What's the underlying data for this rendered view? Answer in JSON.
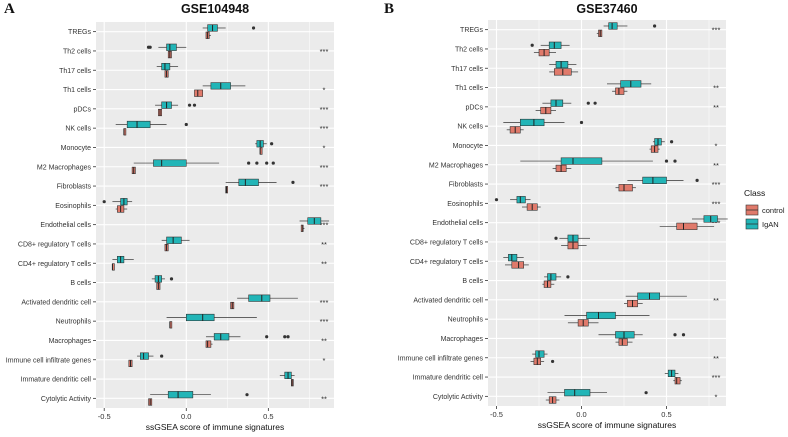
{
  "chart_data": [
    {
      "panel": "A",
      "type": "boxplot",
      "title": "GSE104948",
      "xlabel": "ssGSEA score of immune signatures",
      "xlim": [
        -0.55,
        0.9
      ],
      "xticks": [
        -0.5,
        0.0,
        0.5
      ],
      "xtick_labels": [
        "-0.5",
        "0.0",
        "0.5"
      ],
      "groups": [
        "control",
        "IgAN"
      ],
      "categories": [
        {
          "label": "TREGs",
          "sig": "",
          "control": {
            "q1": 0.12,
            "med": 0.13,
            "q3": 0.14,
            "min": 0.12,
            "max": 0.15
          },
          "IgAN": {
            "q1": 0.13,
            "med": 0.16,
            "q3": 0.19,
            "min": 0.1,
            "max": 0.24,
            "out": [
              0.41
            ]
          }
        },
        {
          "label": "Th2 cells",
          "sig": "***",
          "control": {
            "q1": -0.11,
            "med": -0.1,
            "q3": -0.09,
            "min": -0.11,
            "max": -0.09
          },
          "IgAN": {
            "q1": -0.12,
            "med": -0.1,
            "q3": -0.06,
            "min": -0.17,
            "max": 0.0,
            "out": [
              -0.22,
              -0.23
            ]
          }
        },
        {
          "label": "Th17 cells",
          "sig": "",
          "control": {
            "q1": -0.13,
            "med": -0.12,
            "q3": -0.11,
            "min": -0.13,
            "max": -0.11
          },
          "IgAN": {
            "q1": -0.15,
            "med": -0.13,
            "q3": -0.1,
            "min": -0.18,
            "max": -0.05
          }
        },
        {
          "label": "Th1 cells",
          "sig": "*",
          "control": {
            "q1": 0.05,
            "med": 0.07,
            "q3": 0.1,
            "min": 0.05,
            "max": 0.1
          },
          "IgAN": {
            "q1": 0.15,
            "med": 0.21,
            "q3": 0.27,
            "min": 0.1,
            "max": 0.36
          }
        },
        {
          "label": "pDCs",
          "sig": "***",
          "control": {
            "q1": -0.17,
            "med": -0.16,
            "q3": -0.15,
            "min": -0.17,
            "max": -0.15
          },
          "IgAN": {
            "q1": -0.15,
            "med": -0.12,
            "q3": -0.09,
            "min": -0.19,
            "max": -0.05,
            "out": [
              0.02,
              0.05
            ]
          }
        },
        {
          "label": "NK cells",
          "sig": "***",
          "control": {
            "q1": -0.38,
            "med": -0.38,
            "q3": -0.37,
            "min": -0.38,
            "max": -0.37
          },
          "IgAN": {
            "q1": -0.36,
            "med": -0.3,
            "q3": -0.22,
            "min": -0.43,
            "max": -0.12,
            "out": [
              0.0
            ]
          }
        },
        {
          "label": "Monocyte",
          "sig": "*",
          "control": {
            "q1": 0.45,
            "med": 0.45,
            "q3": 0.46,
            "min": 0.45,
            "max": 0.46
          },
          "IgAN": {
            "q1": 0.43,
            "med": 0.45,
            "q3": 0.47,
            "min": 0.42,
            "max": 0.49,
            "out": [
              0.52
            ]
          }
        },
        {
          "label": "M2 Macrophages",
          "sig": "***",
          "control": {
            "q1": -0.33,
            "med": -0.32,
            "q3": -0.31,
            "min": -0.33,
            "max": -0.31
          },
          "IgAN": {
            "q1": -0.2,
            "med": -0.15,
            "q3": 0.0,
            "min": -0.32,
            "max": 0.2,
            "out": [
              0.38,
              0.43,
              0.49,
              0.53
            ]
          }
        },
        {
          "label": "Fibroblasts",
          "sig": "***",
          "control": {
            "q1": 0.24,
            "med": 0.245,
            "q3": 0.25,
            "min": 0.24,
            "max": 0.25
          },
          "IgAN": {
            "q1": 0.32,
            "med": 0.36,
            "q3": 0.44,
            "min": 0.24,
            "max": 0.55,
            "out": [
              0.65
            ]
          }
        },
        {
          "label": "Eosinophils",
          "sig": "",
          "control": {
            "q1": -0.42,
            "med": -0.4,
            "q3": -0.38,
            "min": -0.43,
            "max": -0.36
          },
          "IgAN": {
            "q1": -0.4,
            "med": -0.38,
            "q3": -0.36,
            "min": -0.45,
            "max": -0.33,
            "out": [
              -0.5
            ]
          }
        },
        {
          "label": "Endothelial cells",
          "sig": "***",
          "control": {
            "q1": 0.7,
            "med": 0.71,
            "q3": 0.71,
            "min": 0.7,
            "max": 0.72
          },
          "IgAN": {
            "q1": 0.74,
            "med": 0.78,
            "q3": 0.82,
            "min": 0.69,
            "max": 0.87
          }
        },
        {
          "label": "CD8+ regulatory T cells",
          "sig": "**",
          "control": {
            "q1": -0.13,
            "med": -0.12,
            "q3": -0.11,
            "min": -0.13,
            "max": -0.11
          },
          "IgAN": {
            "q1": -0.12,
            "med": -0.08,
            "q3": -0.03,
            "min": -0.15,
            "max": 0.02
          }
        },
        {
          "label": "CD4+ regulatory T cells",
          "sig": "**",
          "control": {
            "q1": -0.45,
            "med": -0.45,
            "q3": -0.44,
            "min": -0.45,
            "max": -0.44
          },
          "IgAN": {
            "q1": -0.42,
            "med": -0.4,
            "q3": -0.38,
            "min": -0.45,
            "max": -0.32
          }
        },
        {
          "label": "B cells",
          "sig": "",
          "control": {
            "q1": -0.18,
            "med": -0.17,
            "q3": -0.16,
            "min": -0.18,
            "max": -0.16
          },
          "IgAN": {
            "q1": -0.19,
            "med": -0.17,
            "q3": -0.15,
            "min": -0.21,
            "max": -0.13,
            "out": [
              -0.09
            ]
          }
        },
        {
          "label": "Activated dendritic cell",
          "sig": "***",
          "control": {
            "q1": 0.27,
            "med": 0.28,
            "q3": 0.29,
            "min": 0.27,
            "max": 0.29
          },
          "IgAN": {
            "q1": 0.38,
            "med": 0.46,
            "q3": 0.51,
            "min": 0.31,
            "max": 0.68
          }
        },
        {
          "label": "Neutrophils",
          "sig": "***",
          "control": {
            "q1": -0.1,
            "med": -0.1,
            "q3": -0.09,
            "min": -0.1,
            "max": -0.09
          },
          "IgAN": {
            "q1": 0.0,
            "med": 0.1,
            "q3": 0.17,
            "min": -0.12,
            "max": 0.43
          }
        },
        {
          "label": "Macrophages",
          "sig": "**",
          "control": {
            "q1": 0.12,
            "med": 0.13,
            "q3": 0.15,
            "min": 0.12,
            "max": 0.16
          },
          "IgAN": {
            "q1": 0.17,
            "med": 0.21,
            "q3": 0.26,
            "min": 0.12,
            "max": 0.33,
            "out": [
              0.49,
              0.6,
              0.62
            ]
          }
        },
        {
          "label": "Immune cell infiltrate genes",
          "sig": "*",
          "control": {
            "q1": -0.35,
            "med": -0.34,
            "q3": -0.33,
            "min": -0.35,
            "max": -0.33
          },
          "IgAN": {
            "q1": -0.28,
            "med": -0.26,
            "q3": -0.23,
            "min": -0.3,
            "max": -0.2,
            "out": [
              -0.15
            ]
          }
        },
        {
          "label": "Immature dendritic cell",
          "sig": "",
          "control": {
            "q1": 0.64,
            "med": 0.645,
            "q3": 0.65,
            "min": 0.64,
            "max": 0.65
          },
          "IgAN": {
            "q1": 0.6,
            "med": 0.62,
            "q3": 0.64,
            "min": 0.57,
            "max": 0.66
          }
        },
        {
          "label": "Cytolytic Activity",
          "sig": "**",
          "control": {
            "q1": -0.23,
            "med": -0.22,
            "q3": -0.21,
            "min": -0.23,
            "max": -0.21
          },
          "IgAN": {
            "q1": -0.11,
            "med": -0.05,
            "q3": 0.04,
            "min": -0.22,
            "max": 0.15,
            "out": [
              0.37
            ]
          }
        }
      ]
    },
    {
      "panel": "B",
      "type": "boxplot",
      "title": "GSE37460",
      "xlabel": "ssGSEA score of immune signatures",
      "xlim": [
        -0.55,
        0.85
      ],
      "xticks": [
        -0.5,
        0.0,
        0.5
      ],
      "xtick_labels": [
        "-0.5",
        "0.0",
        "0.5"
      ],
      "groups": [
        "control",
        "IgAN"
      ],
      "categories": [
        {
          "label": "TREGs",
          "sig": "***",
          "control": {
            "q1": 0.1,
            "med": 0.11,
            "q3": 0.12,
            "min": 0.09,
            "max": 0.12
          },
          "IgAN": {
            "q1": 0.16,
            "med": 0.18,
            "q3": 0.21,
            "min": 0.13,
            "max": 0.27,
            "out": [
              0.43
            ]
          }
        },
        {
          "label": "Th2 cells",
          "sig": "",
          "control": {
            "q1": -0.25,
            "med": -0.22,
            "q3": -0.19,
            "min": -0.28,
            "max": -0.15
          },
          "IgAN": {
            "q1": -0.19,
            "med": -0.16,
            "q3": -0.12,
            "min": -0.24,
            "max": -0.07,
            "out": [
              -0.29
            ]
          }
        },
        {
          "label": "Th17 cells",
          "sig": "",
          "control": {
            "q1": -0.16,
            "med": -0.11,
            "q3": -0.06,
            "min": -0.19,
            "max": -0.02
          },
          "IgAN": {
            "q1": -0.15,
            "med": -0.12,
            "q3": -0.08,
            "min": -0.19,
            "max": -0.03
          }
        },
        {
          "label": "Th1 cells",
          "sig": "**",
          "control": {
            "q1": 0.2,
            "med": 0.22,
            "q3": 0.25,
            "min": 0.18,
            "max": 0.27
          },
          "IgAN": {
            "q1": 0.23,
            "med": 0.29,
            "q3": 0.35,
            "min": 0.15,
            "max": 0.41
          }
        },
        {
          "label": "pDCs",
          "sig": "**",
          "control": {
            "q1": -0.24,
            "med": -0.21,
            "q3": -0.18,
            "min": -0.27,
            "max": -0.15
          },
          "IgAN": {
            "q1": -0.18,
            "med": -0.15,
            "q3": -0.11,
            "min": -0.23,
            "max": -0.06,
            "out": [
              0.04,
              0.08
            ]
          }
        },
        {
          "label": "NK cells",
          "sig": "",
          "control": {
            "q1": -0.42,
            "med": -0.39,
            "q3": -0.36,
            "min": -0.44,
            "max": -0.34
          },
          "IgAN": {
            "q1": -0.36,
            "med": -0.28,
            "q3": -0.22,
            "min": -0.46,
            "max": -0.1,
            "out": [
              0.0
            ]
          }
        },
        {
          "label": "Monocyte",
          "sig": "*",
          "control": {
            "q1": 0.41,
            "med": 0.43,
            "q3": 0.45,
            "min": 0.4,
            "max": 0.46
          },
          "IgAN": {
            "q1": 0.43,
            "med": 0.45,
            "q3": 0.47,
            "min": 0.42,
            "max": 0.49,
            "out": [
              0.53
            ]
          }
        },
        {
          "label": "M2 Macrophages",
          "sig": "**",
          "control": {
            "q1": -0.15,
            "med": -0.12,
            "q3": -0.09,
            "min": -0.17,
            "max": -0.06
          },
          "IgAN": {
            "q1": -0.12,
            "med": -0.05,
            "q3": 0.12,
            "min": -0.36,
            "max": 0.42,
            "out": [
              0.5,
              0.55
            ]
          }
        },
        {
          "label": "Fibroblasts",
          "sig": "***",
          "control": {
            "q1": 0.22,
            "med": 0.25,
            "q3": 0.3,
            "min": 0.2,
            "max": 0.32
          },
          "IgAN": {
            "q1": 0.36,
            "med": 0.42,
            "q3": 0.5,
            "min": 0.27,
            "max": 0.6,
            "out": [
              0.68
            ]
          }
        },
        {
          "label": "Eosinophils",
          "sig": "***",
          "control": {
            "q1": -0.32,
            "med": -0.29,
            "q3": -0.26,
            "min": -0.35,
            "max": -0.24
          },
          "IgAN": {
            "q1": -0.38,
            "med": -0.36,
            "q3": -0.33,
            "min": -0.42,
            "max": -0.3,
            "out": [
              -0.5
            ]
          }
        },
        {
          "label": "Endothelial cells",
          "sig": "***",
          "control": {
            "q1": 0.56,
            "med": 0.6,
            "q3": 0.68,
            "min": 0.46,
            "max": 0.78
          },
          "IgAN": {
            "q1": 0.72,
            "med": 0.76,
            "q3": 0.8,
            "min": 0.65,
            "max": 0.86
          }
        },
        {
          "label": "CD8+ regulatory T cells",
          "sig": "",
          "control": {
            "q1": -0.08,
            "med": -0.05,
            "q3": -0.02,
            "min": -0.12,
            "max": 0.03
          },
          "IgAN": {
            "q1": -0.08,
            "med": -0.05,
            "q3": -0.02,
            "min": -0.13,
            "max": 0.05,
            "out": [
              -0.15
            ]
          }
        },
        {
          "label": "CD4+ regulatory T cells",
          "sig": "",
          "control": {
            "q1": -0.41,
            "med": -0.37,
            "q3": -0.34,
            "min": -0.45,
            "max": -0.31
          },
          "IgAN": {
            "q1": -0.43,
            "med": -0.41,
            "q3": -0.38,
            "min": -0.46,
            "max": -0.34
          }
        },
        {
          "label": "B cells",
          "sig": "",
          "control": {
            "q1": -0.22,
            "med": -0.2,
            "q3": -0.18,
            "min": -0.23,
            "max": -0.16
          },
          "IgAN": {
            "q1": -0.2,
            "med": -0.18,
            "q3": -0.15,
            "min": -0.22,
            "max": -0.12,
            "out": [
              -0.08
            ]
          }
        },
        {
          "label": "Activated dendritic cell",
          "sig": "**",
          "control": {
            "q1": 0.27,
            "med": 0.3,
            "q3": 0.33,
            "min": 0.25,
            "max": 0.36
          },
          "IgAN": {
            "q1": 0.33,
            "med": 0.4,
            "q3": 0.46,
            "min": 0.26,
            "max": 0.62
          }
        },
        {
          "label": "Neutrophils",
          "sig": "",
          "control": {
            "q1": -0.02,
            "med": 0.01,
            "q3": 0.04,
            "min": -0.08,
            "max": 0.1
          },
          "IgAN": {
            "q1": 0.03,
            "med": 0.1,
            "q3": 0.2,
            "min": -0.1,
            "max": 0.4
          }
        },
        {
          "label": "Macrophages",
          "sig": "",
          "control": {
            "q1": 0.22,
            "med": 0.24,
            "q3": 0.27,
            "min": 0.2,
            "max": 0.3
          },
          "IgAN": {
            "q1": 0.2,
            "med": 0.25,
            "q3": 0.31,
            "min": 0.1,
            "max": 0.36,
            "out": [
              0.55,
              0.6
            ]
          }
        },
        {
          "label": "Immune cell infiltrate genes",
          "sig": "**",
          "control": {
            "q1": -0.28,
            "med": -0.26,
            "q3": -0.24,
            "min": -0.3,
            "max": -0.22,
            "out": [
              -0.17
            ]
          },
          "IgAN": {
            "q1": -0.27,
            "med": -0.25,
            "q3": -0.22,
            "min": -0.29,
            "max": -0.2
          }
        },
        {
          "label": "Immature dendritic cell",
          "sig": "***",
          "control": {
            "q1": 0.55,
            "med": 0.56,
            "q3": 0.58,
            "min": 0.54,
            "max": 0.59
          },
          "IgAN": {
            "q1": 0.51,
            "med": 0.53,
            "q3": 0.55,
            "min": 0.49,
            "max": 0.57
          }
        },
        {
          "label": "Cytolytic Activity",
          "sig": "*",
          "control": {
            "q1": -0.19,
            "med": -0.17,
            "q3": -0.15,
            "min": -0.21,
            "max": -0.13
          },
          "IgAN": {
            "q1": -0.1,
            "med": -0.04,
            "q3": 0.05,
            "min": -0.2,
            "max": 0.15,
            "out": [
              0.38
            ]
          }
        }
      ]
    }
  ],
  "legend": {
    "title": "Class",
    "items": [
      {
        "label": "control",
        "color": "#e07a6b"
      },
      {
        "label": "IgAN",
        "color": "#22b5b7"
      }
    ]
  },
  "colors": {
    "control": "#e07a6b",
    "IgAN": "#22b5b7",
    "panel_bg": "#ebebeb",
    "grid": "#ffffff"
  }
}
